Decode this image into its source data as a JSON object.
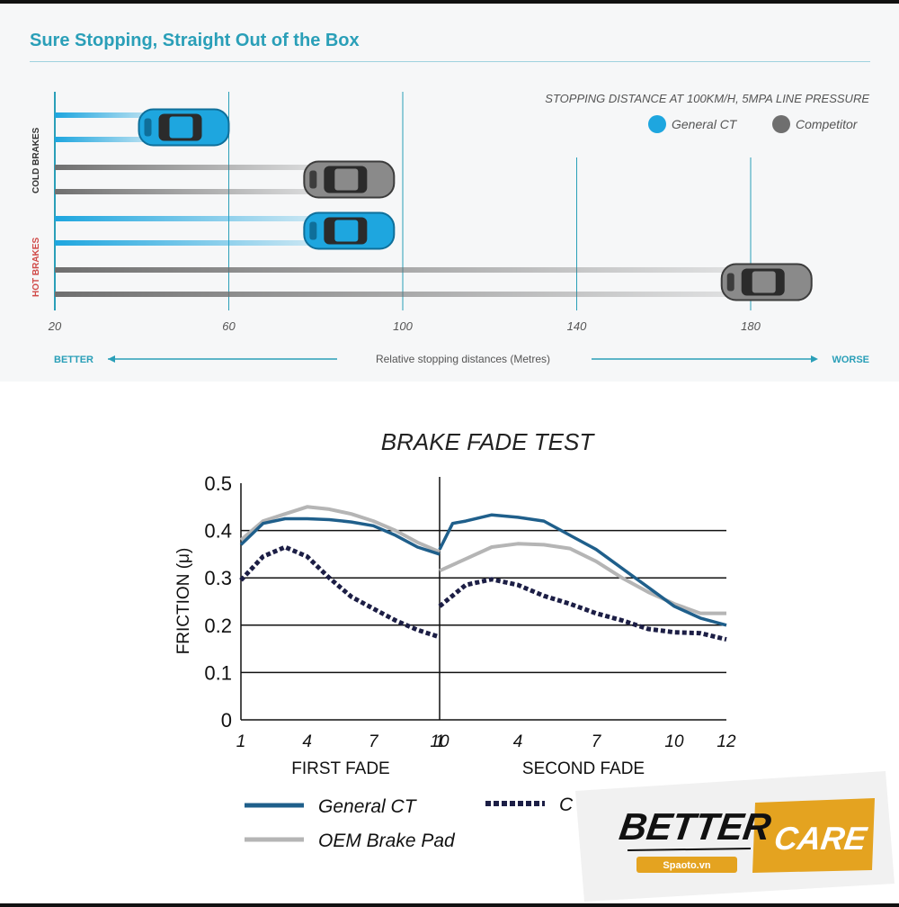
{
  "section_title": "Sure Stopping, Straight Out of the Box",
  "stopping_chart": {
    "chart_data": {
      "type": "bar",
      "title": "STOPPING DISTANCE AT 100KM/H, 5MPA LINE PRESSURE",
      "xlabel": "Relative stopping distances (Metres)",
      "x_ticks": [
        "20",
        "60",
        "100",
        "140",
        "180"
      ],
      "xlim": [
        20,
        200
      ],
      "categories": [
        "COLD BRAKES",
        "HOT BRAKES"
      ],
      "series": [
        {
          "name": "General CT",
          "values": [
            60,
            98
          ]
        },
        {
          "name": "Competitor",
          "values": [
            98,
            194
          ]
        }
      ],
      "better_label": "BETTER",
      "worse_label": "WORSE",
      "legend_position": "top-right"
    },
    "colors": {
      "general": "#1ea6df",
      "competitor": "#6f6f6f",
      "accent": "#2a9fb8",
      "hot": "#d04a48"
    }
  },
  "fade_chart": {
    "chart_data": {
      "type": "line",
      "title": "BRAKE FADE TEST",
      "ylabel": "FRICTION (μ)",
      "ylim": [
        0,
        0.5
      ],
      "y_ticks": [
        "0",
        "0.1",
        "0.2",
        "0.3",
        "0.4",
        "0.5"
      ],
      "groups": [
        {
          "name": "FIRST FADE",
          "x_ticks": [
            "1",
            "4",
            "7",
            "10"
          ],
          "x_range": [
            1,
            10
          ]
        },
        {
          "name": "SECOND FADE",
          "x_ticks": [
            "1",
            "4",
            "7",
            "10",
            "12"
          ],
          "x_range": [
            1,
            12
          ]
        }
      ],
      "series": [
        {
          "name": "General CT",
          "first": [
            [
              1,
              0.37
            ],
            [
              2,
              0.415
            ],
            [
              3,
              0.425
            ],
            [
              4,
              0.425
            ],
            [
              5,
              0.423
            ],
            [
              6,
              0.418
            ],
            [
              7,
              0.41
            ],
            [
              8,
              0.39
            ],
            [
              9,
              0.365
            ],
            [
              10,
              0.35
            ]
          ],
          "second": [
            [
              1,
              0.36
            ],
            [
              1.5,
              0.415
            ],
            [
              2,
              0.42
            ],
            [
              3,
              0.433
            ],
            [
              4,
              0.428
            ],
            [
              5,
              0.42
            ],
            [
              6,
              0.39
            ],
            [
              7,
              0.36
            ],
            [
              8,
              0.32
            ],
            [
              9,
              0.28
            ],
            [
              10,
              0.24
            ],
            [
              11,
              0.215
            ],
            [
              12,
              0.2
            ]
          ]
        },
        {
          "name": "OEM Brake Pad",
          "first": [
            [
              1,
              0.38
            ],
            [
              2,
              0.42
            ],
            [
              3,
              0.435
            ],
            [
              4,
              0.45
            ],
            [
              5,
              0.445
            ],
            [
              6,
              0.435
            ],
            [
              7,
              0.42
            ],
            [
              8,
              0.4
            ],
            [
              9,
              0.375
            ],
            [
              10,
              0.355
            ]
          ],
          "second": [
            [
              1,
              0.315
            ],
            [
              2,
              0.34
            ],
            [
              3,
              0.365
            ],
            [
              4,
              0.372
            ],
            [
              5,
              0.37
            ],
            [
              6,
              0.362
            ],
            [
              7,
              0.335
            ],
            [
              8,
              0.3
            ],
            [
              9,
              0.27
            ],
            [
              10,
              0.245
            ],
            [
              11,
              0.225
            ],
            [
              12,
              0.225
            ]
          ]
        },
        {
          "name": "C",
          "first": [
            [
              1,
              0.295
            ],
            [
              2,
              0.345
            ],
            [
              3,
              0.365
            ],
            [
              4,
              0.345
            ],
            [
              5,
              0.3
            ],
            [
              6,
              0.26
            ],
            [
              7,
              0.235
            ],
            [
              8,
              0.21
            ],
            [
              9,
              0.19
            ],
            [
              10,
              0.175
            ]
          ],
          "second": [
            [
              1,
              0.24
            ],
            [
              2,
              0.285
            ],
            [
              3,
              0.297
            ],
            [
              4,
              0.285
            ],
            [
              5,
              0.262
            ],
            [
              6,
              0.245
            ],
            [
              7,
              0.225
            ],
            [
              8,
              0.21
            ],
            [
              9,
              0.192
            ],
            [
              10,
              0.185
            ],
            [
              11,
              0.183
            ],
            [
              12,
              0.17
            ]
          ]
        }
      ],
      "legend_position": "bottom"
    },
    "colors": {
      "general": "#1f5f8b",
      "oem": "#b5b5b5",
      "c": "#1c1e45"
    }
  },
  "logo": {
    "word1": "BETTER",
    "word2": "CARE",
    "sub": "Spaoto.vn",
    "colors": {
      "box": "#e4a320",
      "panel": "#f1f1f1",
      "text": "#111111"
    }
  }
}
